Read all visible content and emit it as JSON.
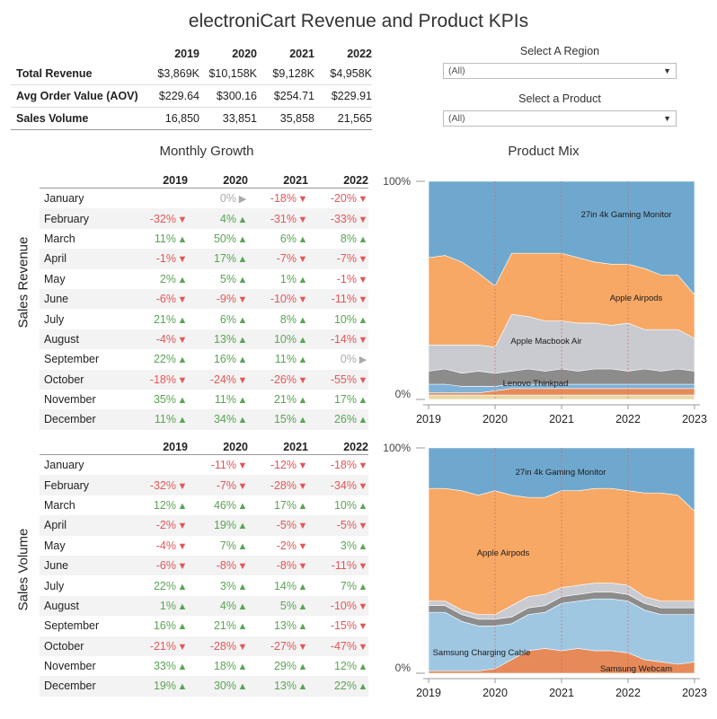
{
  "title": "electroniCart Revenue and Product KPIs",
  "kpi": {
    "years": [
      "2019",
      "2020",
      "2021",
      "2022"
    ],
    "rows": [
      {
        "label": "Total Revenue",
        "values": [
          "$3,869K",
          "$10,158K",
          "$9,128K",
          "$4,958K"
        ]
      },
      {
        "label": "Avg Order Value (AOV)",
        "values": [
          "$229.64",
          "$300.16",
          "$254.71",
          "$229.91"
        ]
      },
      {
        "label": "Sales Volume",
        "values": [
          "16,850",
          "33,851",
          "35,858",
          "21,565"
        ]
      }
    ]
  },
  "filters": {
    "region": {
      "label": "Select A Region",
      "value": "(All)"
    },
    "product": {
      "label": "Select a Product",
      "value": "(All)"
    }
  },
  "monthly_growth_title": "Monthly Growth",
  "product_mix_title": "Product Mix",
  "revenue_label": "Sales Revenue",
  "volume_label": "Sales Volume",
  "growth_years": [
    "2019",
    "2020",
    "2021",
    "2022"
  ],
  "colors": {
    "positive": "#5aa454",
    "negative": "#e15759",
    "neutral": "#aaaaaa"
  },
  "chart_data": [
    {
      "type": "table",
      "name": "Sales Revenue Monthly Growth",
      "columns": [
        "2019",
        "2020",
        "2021",
        "2022"
      ],
      "rows": [
        {
          "month": "January",
          "values": [
            "",
            "0%",
            "-18%",
            "-20%"
          ],
          "dirs": [
            "",
            "flat",
            "down",
            "down"
          ]
        },
        {
          "month": "February",
          "values": [
            "-32%",
            "4%",
            "-31%",
            "-33%"
          ],
          "dirs": [
            "down",
            "up",
            "down",
            "down"
          ]
        },
        {
          "month": "March",
          "values": [
            "11%",
            "50%",
            "6%",
            "8%"
          ],
          "dirs": [
            "up",
            "up",
            "up",
            "up"
          ]
        },
        {
          "month": "April",
          "values": [
            "-1%",
            "17%",
            "-7%",
            "-7%"
          ],
          "dirs": [
            "down",
            "up",
            "down",
            "down"
          ]
        },
        {
          "month": "May",
          "values": [
            "2%",
            "5%",
            "1%",
            "-1%"
          ],
          "dirs": [
            "up",
            "up",
            "up",
            "down"
          ]
        },
        {
          "month": "June",
          "values": [
            "-6%",
            "-9%",
            "-10%",
            "-11%"
          ],
          "dirs": [
            "down",
            "down",
            "down",
            "down"
          ]
        },
        {
          "month": "July",
          "values": [
            "21%",
            "6%",
            "8%",
            "10%"
          ],
          "dirs": [
            "up",
            "up",
            "up",
            "up"
          ]
        },
        {
          "month": "August",
          "values": [
            "-4%",
            "13%",
            "10%",
            "-14%"
          ],
          "dirs": [
            "down",
            "up",
            "up",
            "down"
          ]
        },
        {
          "month": "September",
          "values": [
            "22%",
            "16%",
            "11%",
            "0%"
          ],
          "dirs": [
            "up",
            "up",
            "up",
            "flat"
          ]
        },
        {
          "month": "October",
          "values": [
            "-18%",
            "-24%",
            "-26%",
            "-55%"
          ],
          "dirs": [
            "down",
            "down",
            "down",
            "down"
          ]
        },
        {
          "month": "November",
          "values": [
            "35%",
            "11%",
            "21%",
            "17%"
          ],
          "dirs": [
            "up",
            "up",
            "up",
            "up"
          ]
        },
        {
          "month": "December",
          "values": [
            "11%",
            "34%",
            "15%",
            "26%"
          ],
          "dirs": [
            "up",
            "up",
            "up",
            "up"
          ]
        }
      ]
    },
    {
      "type": "table",
      "name": "Sales Volume Monthly Growth",
      "columns": [
        "2019",
        "2020",
        "2021",
        "2022"
      ],
      "rows": [
        {
          "month": "January",
          "values": [
            "",
            "-11%",
            "-12%",
            "-18%"
          ],
          "dirs": [
            "",
            "down",
            "down",
            "down"
          ]
        },
        {
          "month": "February",
          "values": [
            "-32%",
            "-7%",
            "-28%",
            "-34%"
          ],
          "dirs": [
            "down",
            "down",
            "down",
            "down"
          ]
        },
        {
          "month": "March",
          "values": [
            "12%",
            "46%",
            "17%",
            "10%"
          ],
          "dirs": [
            "up",
            "up",
            "up",
            "up"
          ]
        },
        {
          "month": "April",
          "values": [
            "-2%",
            "19%",
            "-5%",
            "-5%"
          ],
          "dirs": [
            "down",
            "up",
            "down",
            "down"
          ]
        },
        {
          "month": "May",
          "values": [
            "-4%",
            "7%",
            "-2%",
            "3%"
          ],
          "dirs": [
            "down",
            "up",
            "down",
            "up"
          ]
        },
        {
          "month": "June",
          "values": [
            "-6%",
            "-8%",
            "-8%",
            "-11%"
          ],
          "dirs": [
            "down",
            "down",
            "down",
            "down"
          ]
        },
        {
          "month": "July",
          "values": [
            "22%",
            "3%",
            "14%",
            "7%"
          ],
          "dirs": [
            "up",
            "up",
            "up",
            "up"
          ]
        },
        {
          "month": "August",
          "values": [
            "1%",
            "4%",
            "5%",
            "-10%"
          ],
          "dirs": [
            "up",
            "up",
            "up",
            "down"
          ]
        },
        {
          "month": "September",
          "values": [
            "16%",
            "21%",
            "13%",
            "-15%"
          ],
          "dirs": [
            "up",
            "up",
            "up",
            "down"
          ]
        },
        {
          "month": "October",
          "values": [
            "-21%",
            "-28%",
            "-27%",
            "-47%"
          ],
          "dirs": [
            "down",
            "down",
            "down",
            "down"
          ]
        },
        {
          "month": "November",
          "values": [
            "33%",
            "18%",
            "29%",
            "12%"
          ],
          "dirs": [
            "up",
            "up",
            "up",
            "up"
          ]
        },
        {
          "month": "December",
          "values": [
            "19%",
            "30%",
            "13%",
            "22%"
          ],
          "dirs": [
            "up",
            "up",
            "up",
            "up"
          ]
        }
      ]
    },
    {
      "type": "area",
      "name": "Product Mix - Sales Revenue",
      "stacked": "100%",
      "x_ticks": [
        "2019",
        "2020",
        "2021",
        "2022",
        "2023"
      ],
      "y_ticks": [
        "0%",
        "100%"
      ],
      "x": [
        2019.0,
        2019.25,
        2019.5,
        2019.75,
        2020.0,
        2020.25,
        2020.5,
        2020.75,
        2021.0,
        2021.25,
        2021.5,
        2021.75,
        2022.0,
        2022.25,
        2022.5,
        2022.75,
        2023.0
      ],
      "series": [
        {
          "name": "",
          "color": "#e9d9a6",
          "values": [
            0.02,
            0.02,
            0.02,
            0.02,
            0.02,
            0.02,
            0.02,
            0.02,
            0.02,
            0.02,
            0.02,
            0.02,
            0.02,
            0.02,
            0.02,
            0.02,
            0.02
          ]
        },
        {
          "name": "",
          "color": "#e68a5a",
          "values": [
            0.01,
            0.01,
            0.01,
            0.01,
            0.02,
            0.03,
            0.03,
            0.03,
            0.03,
            0.03,
            0.03,
            0.03,
            0.03,
            0.03,
            0.03,
            0.03,
            0.03
          ]
        },
        {
          "name": "",
          "color": "#7fb2d8",
          "values": [
            0.04,
            0.04,
            0.03,
            0.03,
            0.02,
            0.02,
            0.02,
            0.02,
            0.02,
            0.02,
            0.02,
            0.02,
            0.02,
            0.02,
            0.02,
            0.02,
            0.02
          ]
        },
        {
          "name": "Lenovo Thinkpad",
          "color": "#8c8c8c",
          "values": [
            0.06,
            0.07,
            0.06,
            0.07,
            0.06,
            0.06,
            0.07,
            0.06,
            0.07,
            0.06,
            0.07,
            0.07,
            0.06,
            0.07,
            0.06,
            0.07,
            0.06
          ]
        },
        {
          "name": "Apple Macbook Air",
          "color": "#c9cbd1",
          "values": [
            0.12,
            0.11,
            0.13,
            0.12,
            0.12,
            0.26,
            0.24,
            0.23,
            0.22,
            0.22,
            0.21,
            0.2,
            0.22,
            0.18,
            0.19,
            0.18,
            0.15
          ]
        },
        {
          "name": "Apple Airpods",
          "color": "#f7a865",
          "values": [
            0.4,
            0.41,
            0.38,
            0.33,
            0.28,
            0.28,
            0.29,
            0.31,
            0.31,
            0.3,
            0.28,
            0.28,
            0.27,
            0.28,
            0.25,
            0.25,
            0.2
          ]
        },
        {
          "name": "27in 4k Gaming Monitor",
          "color": "#6fa8ce",
          "values": [
            0.35,
            0.34,
            0.37,
            0.42,
            0.48,
            0.33,
            0.33,
            0.33,
            0.33,
            0.35,
            0.37,
            0.38,
            0.38,
            0.4,
            0.43,
            0.43,
            0.52
          ]
        }
      ]
    },
    {
      "type": "area",
      "name": "Product Mix - Sales Volume",
      "stacked": "100%",
      "x_ticks": [
        "2019",
        "2020",
        "2021",
        "2022",
        "2023"
      ],
      "y_ticks": [
        "0%",
        "100%"
      ],
      "x": [
        2019.0,
        2019.25,
        2019.5,
        2019.75,
        2020.0,
        2020.25,
        2020.5,
        2020.75,
        2021.0,
        2021.25,
        2021.5,
        2021.75,
        2022.0,
        2022.25,
        2022.5,
        2022.75,
        2023.0
      ],
      "series": [
        {
          "name": "Samsung Webcam",
          "color": "#e68a5a",
          "values": [
            0.01,
            0.01,
            0.01,
            0.01,
            0.02,
            0.06,
            0.1,
            0.11,
            0.1,
            0.11,
            0.1,
            0.1,
            0.09,
            0.06,
            0.05,
            0.04,
            0.05
          ]
        },
        {
          "name": "Samsung Charging Cable",
          "color": "#9fc7e2",
          "values": [
            0.26,
            0.26,
            0.22,
            0.2,
            0.19,
            0.16,
            0.16,
            0.16,
            0.21,
            0.21,
            0.23,
            0.23,
            0.23,
            0.22,
            0.21,
            0.22,
            0.21
          ]
        },
        {
          "name": "",
          "color": "#8c8c8c",
          "values": [
            0.03,
            0.03,
            0.03,
            0.03,
            0.03,
            0.03,
            0.03,
            0.03,
            0.03,
            0.03,
            0.03,
            0.03,
            0.03,
            0.03,
            0.03,
            0.03,
            0.03
          ]
        },
        {
          "name": "",
          "color": "#c9cbd1",
          "values": [
            0.02,
            0.02,
            0.02,
            0.02,
            0.02,
            0.05,
            0.05,
            0.05,
            0.04,
            0.04,
            0.04,
            0.04,
            0.04,
            0.03,
            0.03,
            0.03,
            0.03
          ]
        },
        {
          "name": "Apple Airpods",
          "color": "#f7a865",
          "values": [
            0.5,
            0.5,
            0.53,
            0.53,
            0.55,
            0.49,
            0.44,
            0.43,
            0.43,
            0.42,
            0.42,
            0.42,
            0.42,
            0.46,
            0.48,
            0.47,
            0.4
          ]
        },
        {
          "name": "27in 4k Gaming Monitor",
          "color": "#6fa8ce",
          "values": [
            0.18,
            0.18,
            0.19,
            0.21,
            0.19,
            0.21,
            0.22,
            0.22,
            0.19,
            0.19,
            0.18,
            0.18,
            0.19,
            0.2,
            0.2,
            0.21,
            0.28
          ]
        }
      ]
    }
  ]
}
